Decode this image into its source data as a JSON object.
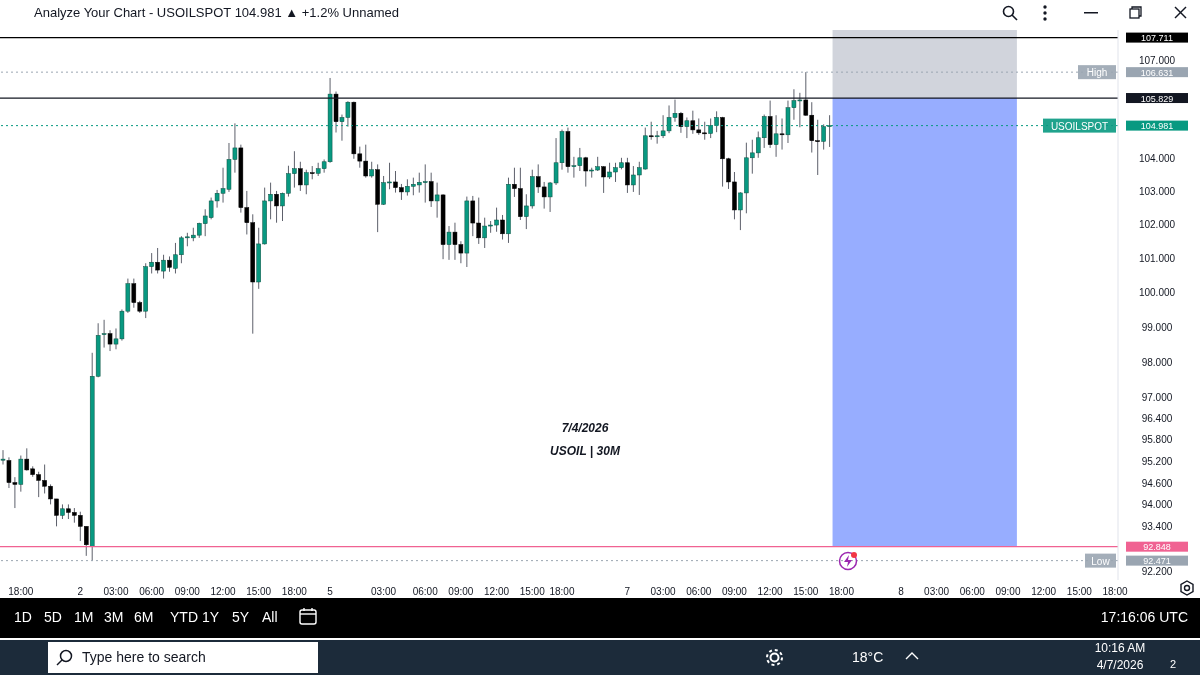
{
  "chart_data": {
    "type": "candlestick",
    "title": "Analyze Your Chart - USOILSPOT 104.981 ▲ +1.2% Unnamed",
    "log": "y",
    "categories": [
      null,
      null,
      null,
      "18:00",
      null,
      null,
      null,
      null,
      null,
      null,
      null,
      null,
      null,
      "2",
      null,
      null,
      null,
      null,
      null,
      "03:00",
      null,
      null,
      null,
      null,
      null,
      "06:00",
      null,
      null,
      null,
      null,
      null,
      "09:00",
      null,
      null,
      null,
      null,
      null,
      "12:00",
      null,
      null,
      null,
      null,
      null,
      "15:00",
      null,
      null,
      null,
      null,
      null,
      "18:00",
      null,
      null,
      null,
      null,
      null,
      "5",
      null,
      null,
      null,
      null,
      null,
      null,
      null,
      null,
      "03:00",
      null,
      null,
      null,
      null,
      null,
      null,
      "06:00",
      null,
      null,
      null,
      null,
      null,
      "09:00",
      null,
      null,
      null,
      null,
      null,
      "12:00",
      null,
      null,
      null,
      null,
      null,
      "15:00",
      null,
      null,
      null,
      null,
      "18:00",
      null,
      null,
      null,
      null,
      null,
      null,
      null,
      null,
      null,
      null,
      "7",
      null,
      null,
      null,
      null,
      null,
      "03:00",
      null,
      null,
      null,
      null,
      null,
      "06:00",
      null,
      null,
      null,
      null,
      null,
      "09:00",
      null,
      null,
      null,
      null,
      null,
      "12:00",
      null,
      null,
      null,
      null,
      null,
      "15:00",
      null,
      null,
      null,
      null,
      null,
      "18:00",
      null,
      null,
      null,
      null,
      null,
      null,
      null,
      null,
      null,
      "8",
      null,
      null,
      null,
      null,
      null,
      "03:00",
      null,
      null,
      null,
      null,
      null,
      "06:00",
      null,
      null,
      null,
      null,
      null,
      "09:00",
      null,
      null,
      null,
      null,
      null,
      "12:00",
      null,
      null,
      null,
      null,
      null,
      "15:00",
      null,
      null,
      null,
      null,
      null,
      "18:00"
    ],
    "ohlc": [
      [
        95.22,
        95.5,
        95.1,
        95.25
      ],
      [
        95.21,
        95.3,
        94.45,
        94.6
      ],
      [
        94.6,
        94.75,
        93.9,
        94.55
      ],
      [
        94.55,
        95.35,
        94.35,
        95.25
      ],
      [
        95.25,
        95.55,
        94.93,
        94.95
      ],
      [
        94.98,
        95.05,
        94.76,
        94.82
      ],
      [
        94.82,
        94.9,
        94.2,
        94.66
      ],
      [
        94.66,
        95.1,
        94.3,
        94.5
      ],
      [
        94.5,
        94.55,
        94.0,
        94.15
      ],
      [
        94.15,
        94.15,
        93.4,
        93.7
      ],
      [
        93.7,
        94.0,
        93.6,
        93.88
      ],
      [
        93.88,
        94.0,
        93.6,
        93.78
      ],
      [
        93.78,
        93.9,
        93.5,
        93.7
      ],
      [
        93.7,
        93.8,
        93.0,
        93.4
      ],
      [
        93.4,
        93.4,
        92.6,
        92.9
      ],
      [
        92.85,
        98.25,
        92.471,
        97.58
      ],
      [
        97.58,
        99.1,
        97.55,
        98.75
      ],
      [
        98.78,
        99.2,
        98.4,
        98.8
      ],
      [
        98.8,
        98.9,
        98.3,
        98.5
      ],
      [
        98.5,
        98.95,
        98.35,
        98.65
      ],
      [
        98.65,
        99.5,
        98.6,
        99.45
      ],
      [
        99.45,
        100.4,
        99.4,
        100.25
      ],
      [
        100.25,
        100.4,
        99.55,
        99.7
      ],
      [
        99.7,
        99.75,
        99.4,
        99.45
      ],
      [
        99.45,
        100.85,
        99.25,
        100.75
      ],
      [
        100.75,
        101.15,
        100.55,
        100.88
      ],
      [
        100.88,
        101.3,
        100.55,
        100.65
      ],
      [
        100.62,
        101.1,
        100.4,
        100.94
      ],
      [
        100.94,
        101.05,
        100.6,
        100.73
      ],
      [
        100.7,
        101.45,
        100.55,
        101.1
      ],
      [
        101.1,
        101.65,
        100.85,
        101.6
      ],
      [
        101.6,
        101.75,
        101.35,
        101.63
      ],
      [
        101.6,
        101.9,
        101.5,
        101.68
      ],
      [
        101.68,
        102.05,
        101.6,
        102.03
      ],
      [
        102.02,
        102.45,
        101.65,
        102.25
      ],
      [
        102.2,
        102.8,
        102.15,
        102.7
      ],
      [
        102.7,
        103.03,
        102.5,
        102.93
      ],
      [
        102.93,
        103.7,
        102.65,
        103.07
      ],
      [
        103.05,
        104.45,
        102.97,
        103.95
      ],
      [
        103.95,
        105.05,
        103.55,
        104.3
      ],
      [
        104.3,
        104.4,
        102.35,
        102.5
      ],
      [
        102.5,
        103.0,
        101.7,
        102.05
      ],
      [
        102.05,
        102.3,
        98.8,
        100.3
      ],
      [
        100.3,
        101.9,
        100.1,
        101.42
      ],
      [
        101.42,
        103.1,
        101.4,
        102.7
      ],
      [
        102.7,
        103.25,
        102.15,
        102.9
      ],
      [
        102.9,
        103.0,
        102.05,
        102.55
      ],
      [
        102.55,
        102.95,
        102.1,
        102.93
      ],
      [
        102.93,
        103.76,
        102.83,
        103.52
      ],
      [
        103.52,
        104.2,
        103.1,
        103.67
      ],
      [
        103.67,
        103.88,
        103.0,
        103.18
      ],
      [
        103.18,
        103.64,
        102.9,
        103.55
      ],
      [
        103.55,
        103.75,
        103.35,
        103.53
      ],
      [
        103.53,
        103.85,
        103.45,
        103.67
      ],
      [
        103.67,
        103.95,
        103.55,
        103.88
      ],
      [
        103.88,
        106.45,
        103.85,
        105.95
      ],
      [
        105.95,
        106.03,
        104.77,
        105.1
      ],
      [
        105.1,
        105.32,
        104.52,
        105.23
      ],
      [
        105.23,
        105.73,
        104.95,
        105.7
      ],
      [
        105.7,
        105.72,
        103.97,
        104.12
      ],
      [
        104.12,
        104.34,
        103.7,
        103.9
      ],
      [
        103.9,
        104.4,
        103.4,
        103.45
      ],
      [
        103.45,
        103.88,
        103.4,
        103.64
      ],
      [
        103.64,
        103.8,
        101.77,
        102.6
      ],
      [
        102.6,
        103.45,
        102.58,
        103.25
      ],
      [
        103.25,
        103.85,
        103.05,
        103.27
      ],
      [
        103.27,
        103.6,
        102.95,
        103.1
      ],
      [
        103.1,
        103.21,
        102.73,
        102.97
      ],
      [
        102.97,
        103.35,
        102.86,
        103.14
      ],
      [
        103.14,
        103.4,
        102.87,
        103.2
      ],
      [
        103.18,
        103.55,
        102.95,
        103.26
      ],
      [
        103.26,
        103.8,
        102.65,
        103.28
      ],
      [
        103.28,
        103.55,
        102.52,
        102.7
      ],
      [
        102.7,
        103.25,
        102.2,
        102.88
      ],
      [
        102.88,
        102.9,
        100.97,
        101.4
      ],
      [
        101.4,
        101.95,
        100.95,
        101.77
      ],
      [
        101.77,
        102.05,
        100.95,
        101.4
      ],
      [
        101.4,
        101.5,
        100.85,
        101.15
      ],
      [
        101.15,
        102.83,
        100.74,
        102.7
      ],
      [
        102.7,
        102.85,
        101.65,
        102.04
      ],
      [
        102.04,
        102.8,
        101.42,
        101.6
      ],
      [
        101.6,
        102.2,
        101.3,
        101.95
      ],
      [
        101.95,
        102.1,
        101.75,
        101.98
      ],
      [
        101.98,
        102.5,
        101.78,
        102.13
      ],
      [
        102.13,
        102.28,
        101.55,
        101.72
      ],
      [
        101.72,
        103.4,
        101.45,
        103.2
      ],
      [
        103.2,
        103.7,
        102.82,
        103.07
      ],
      [
        103.07,
        103.7,
        102.13,
        102.23
      ],
      [
        102.23,
        102.9,
        101.86,
        102.55
      ],
      [
        102.55,
        103.64,
        102.47,
        103.43
      ],
      [
        103.43,
        103.8,
        102.94,
        103.12
      ],
      [
        103.12,
        103.27,
        102.47,
        102.82
      ],
      [
        102.82,
        103.27,
        102.37,
        103.24
      ],
      [
        103.24,
        104.6,
        103.18,
        103.85
      ],
      [
        103.85,
        104.86,
        103.64,
        104.8
      ],
      [
        104.8,
        104.92,
        103.55,
        103.73
      ],
      [
        103.73,
        104.03,
        103.4,
        103.76
      ],
      [
        103.76,
        104.3,
        103.6,
        104.0
      ],
      [
        104.0,
        104.03,
        103.13,
        103.6
      ],
      [
        103.6,
        103.7,
        103.4,
        103.63
      ],
      [
        103.63,
        104.03,
        103.6,
        103.73
      ],
      [
        103.73,
        103.75,
        102.94,
        103.42
      ],
      [
        103.42,
        103.85,
        103.36,
        103.57
      ],
      [
        103.57,
        103.85,
        103.27,
        103.7
      ],
      [
        103.7,
        104.0,
        103.65,
        103.85
      ],
      [
        103.85,
        104.0,
        102.94,
        103.18
      ],
      [
        103.18,
        103.75,
        102.97,
        103.48
      ],
      [
        103.48,
        103.88,
        102.88,
        103.7
      ],
      [
        103.66,
        104.92,
        103.64,
        104.67
      ],
      [
        104.67,
        105.1,
        104.55,
        104.64
      ],
      [
        104.64,
        104.82,
        104.43,
        104.67
      ],
      [
        104.67,
        105.3,
        104.6,
        104.82
      ],
      [
        104.82,
        105.6,
        104.75,
        105.23
      ],
      [
        105.23,
        105.78,
        105.1,
        105.36
      ],
      [
        105.36,
        105.4,
        104.76,
        104.95
      ],
      [
        104.95,
        105.23,
        104.6,
        105.13
      ],
      [
        105.13,
        105.44,
        104.73,
        104.85
      ],
      [
        104.85,
        105.2,
        104.7,
        104.76
      ],
      [
        104.76,
        105.1,
        104.55,
        104.74
      ],
      [
        104.74,
        105.2,
        104.6,
        104.98
      ],
      [
        104.98,
        105.42,
        104.78,
        105.23
      ],
      [
        105.23,
        105.25,
        103.13,
        103.97
      ],
      [
        103.97,
        104.0,
        103.06,
        103.27
      ],
      [
        103.27,
        103.57,
        102.15,
        102.43
      ],
      [
        102.43,
        102.96,
        101.83,
        102.94
      ],
      [
        102.94,
        104.46,
        102.33,
        104.0
      ],
      [
        104.0,
        104.55,
        103.52,
        104.15
      ],
      [
        104.15,
        104.8,
        104.0,
        104.61
      ],
      [
        104.61,
        105.32,
        104.3,
        105.26
      ],
      [
        105.26,
        105.75,
        104.3,
        104.4
      ],
      [
        104.4,
        105.3,
        104.03,
        104.73
      ],
      [
        104.73,
        105.2,
        104.25,
        104.7
      ],
      [
        104.7,
        105.75,
        104.45,
        105.53
      ],
      [
        105.53,
        106.1,
        105.16,
        105.75
      ],
      [
        105.75,
        105.99,
        104.93,
        105.77
      ],
      [
        105.77,
        106.631,
        105.28,
        105.3
      ],
      [
        105.3,
        105.7,
        104.16,
        104.52
      ],
      [
        104.52,
        105.16,
        103.48,
        104.5
      ],
      [
        104.5,
        105.02,
        104.25,
        104.95
      ],
      [
        104.95,
        105.3,
        104.33,
        104.981
      ],
      null,
      null,
      null,
      null,
      null,
      null,
      null,
      null,
      null,
      null,
      null,
      null,
      null,
      null,
      null,
      null,
      null,
      null,
      null,
      null,
      null,
      null,
      null,
      null,
      null,
      null,
      null,
      null,
      null,
      null,
      null,
      null,
      null,
      null,
      null,
      null,
      null,
      null,
      null,
      null,
      null,
      null,
      null,
      null,
      null,
      null,
      null,
      null
    ],
    "ylim": [
      91.95,
      107.95
    ],
    "yticks": [
      {
        "value": 107,
        "label": "107.000"
      },
      {
        "value": 104,
        "label": "104.000"
      },
      {
        "value": 103,
        "label": "103.000"
      },
      {
        "value": 102,
        "label": "102.000"
      },
      {
        "value": 101,
        "label": "101.000"
      },
      {
        "value": 100,
        "label": "100.000"
      },
      {
        "value": 99,
        "label": "99.000"
      },
      {
        "value": 98,
        "label": "98.000"
      },
      {
        "value": 97,
        "label": "97.000"
      },
      {
        "value": 96.4,
        "label": "96.400"
      },
      {
        "value": 95.8,
        "label": "95.800"
      },
      {
        "value": 95.2,
        "label": "95.200"
      },
      {
        "value": 94.6,
        "label": "94.600"
      },
      {
        "value": 94,
        "label": "94.000"
      },
      {
        "value": 93.4,
        "label": "93.400"
      },
      {
        "value": 92.2,
        "label": "92.200"
      },
      {
        "value": 107.711,
        "label": "107.711"
      },
      {
        "value": 106.631,
        "label": "106.631"
      },
      {
        "value": 105.829,
        "label": "105.829"
      },
      {
        "value": 104.981,
        "label": "104.981"
      },
      {
        "value": 92.848,
        "label": "92.848"
      },
      {
        "value": 92.471,
        "label": "92.471"
      }
    ],
    "ref_lines": [
      {
        "axis": "y",
        "value": 107.711,
        "label": null,
        "color": "#000000",
        "line_style": "solid"
      },
      {
        "axis": "y",
        "value": 106.631,
        "label": "High",
        "color": "#9aa5b1",
        "line_style": "dotted"
      },
      {
        "axis": "y",
        "value": 105.829,
        "label": null,
        "color": "#131722",
        "line_style": "solid"
      },
      {
        "axis": "y",
        "value": 104.981,
        "label": "USOILSPOT",
        "color": "#089981",
        "line_style": "dotted"
      },
      {
        "axis": "y",
        "value": 92.848,
        "label": null,
        "color": "#f06292",
        "line_style": "solid"
      },
      {
        "axis": "y",
        "value": 92.471,
        "label": "Low",
        "color": "#9aa5b1",
        "line_style": "dotted"
      }
    ],
    "bands": [
      {
        "axis": "y",
        "from": 105.829,
        "to": 107.95,
        "color": "#d1d4dc"
      },
      {
        "axis": "y",
        "from": 92.848,
        "to": 105.829,
        "color": "#97adff"
      }
    ],
    "annotations": [
      "7/4/2026",
      "USOIL | 30M",
      "1D",
      "5D",
      "1M",
      "3M",
      "6M",
      "YTD",
      "1Y",
      "5Y",
      "All",
      "17:16:06 UTC",
      "Type here to search",
      "18°C",
      "10:16 AM",
      "4/7/2026",
      "2"
    ]
  }
}
